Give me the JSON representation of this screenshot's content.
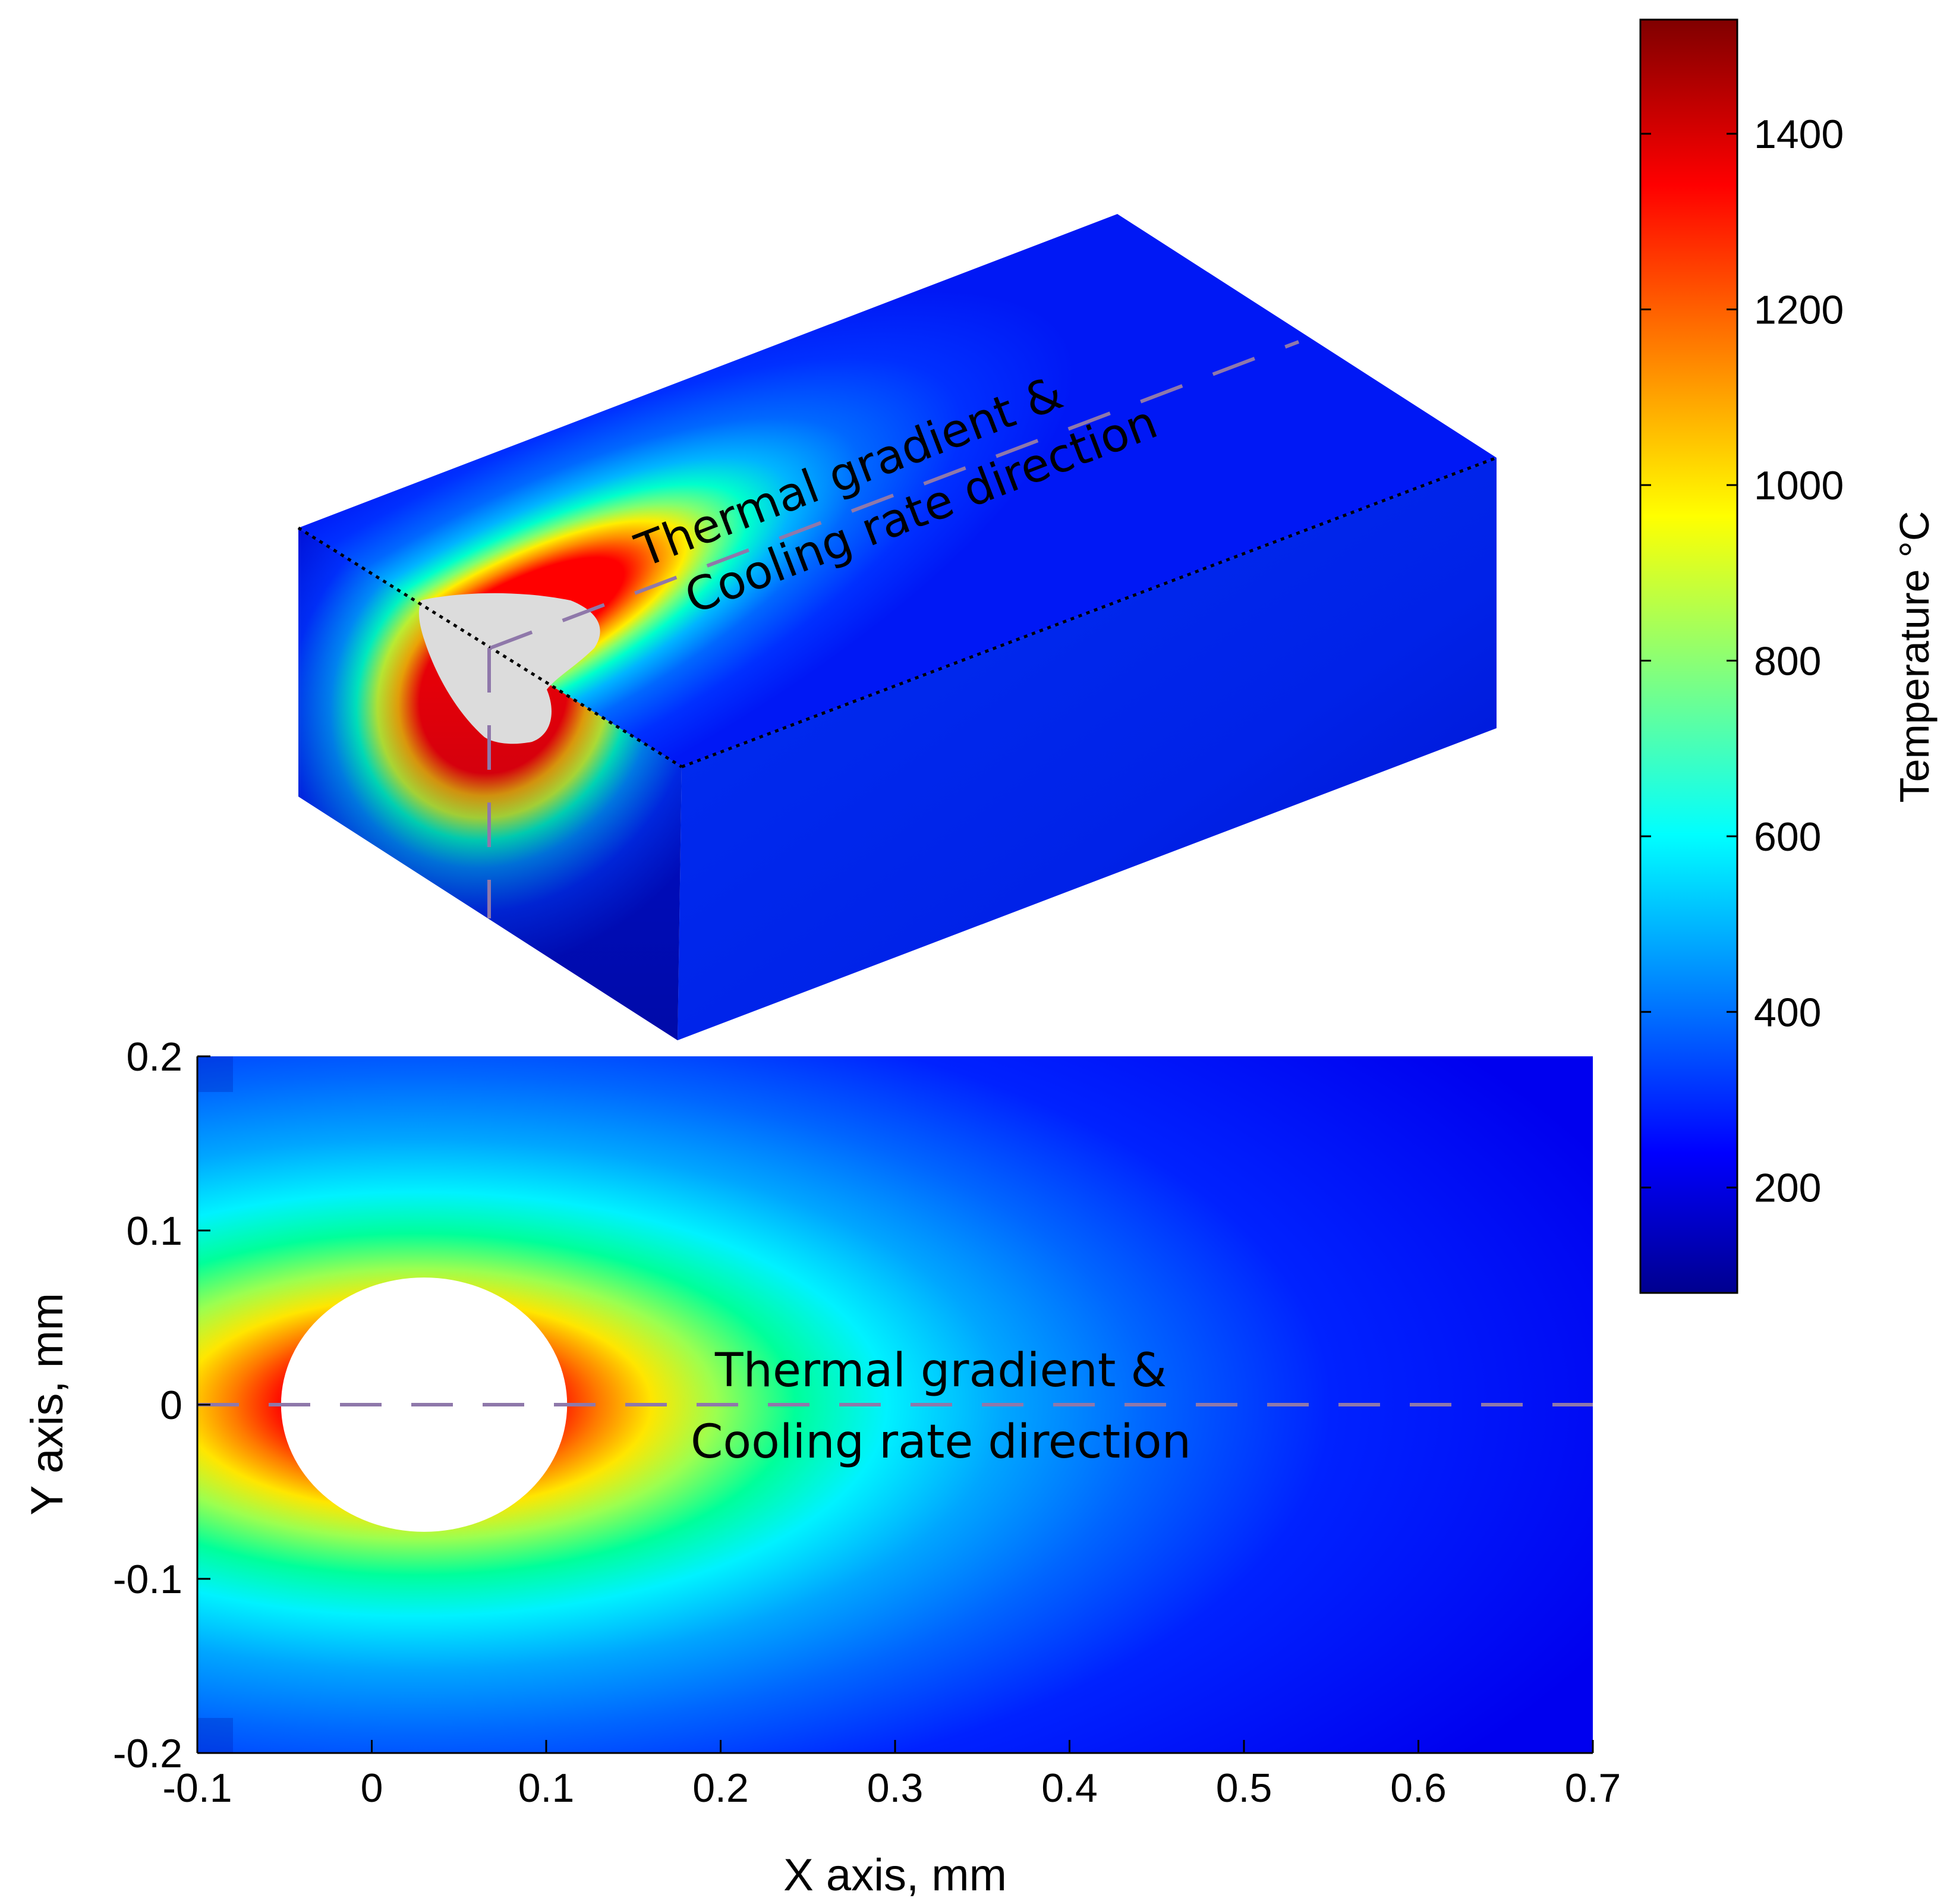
{
  "chart_data": [
    {
      "type": "heatmap",
      "view": "3d-isometric-block",
      "annotation": [
        "Thermal gradient &",
        "Cooling rate direction"
      ],
      "features": [
        "melt-pool-region",
        "dotted-section-lines",
        "dashed-direction-lines"
      ]
    },
    {
      "type": "heatmap",
      "view": "2d-top",
      "xlabel": "X axis, mm",
      "ylabel": "Y axis, mm",
      "xlim": [
        -0.1,
        0.7
      ],
      "ylim": [
        -0.2,
        0.2
      ],
      "xticks": [
        "-0.1",
        "0",
        "0.1",
        "0.2",
        "0.3",
        "0.4",
        "0.5",
        "0.6",
        "0.7"
      ],
      "yticks": [
        "0.2",
        "0.1",
        "0",
        "-0.1",
        "-0.2"
      ],
      "melt_pool": {
        "center_x": 0.03,
        "center_y": 0,
        "radius_x": 0.082,
        "radius_y": 0.073
      },
      "direction_line_y": 0,
      "annotation": [
        "Thermal gradient &",
        "Cooling rate direction"
      ]
    }
  ],
  "colorbar": {
    "label": "Temperature °C",
    "ticks": [
      "1400",
      "1200",
      "1000",
      "800",
      "600",
      "400",
      "200"
    ],
    "range": [
      80,
      1530
    ],
    "colormap": "jet",
    "colors": [
      "#00008f",
      "#0000ff",
      "#00ffff",
      "#ffff00",
      "#ff0000",
      "#800000"
    ]
  }
}
